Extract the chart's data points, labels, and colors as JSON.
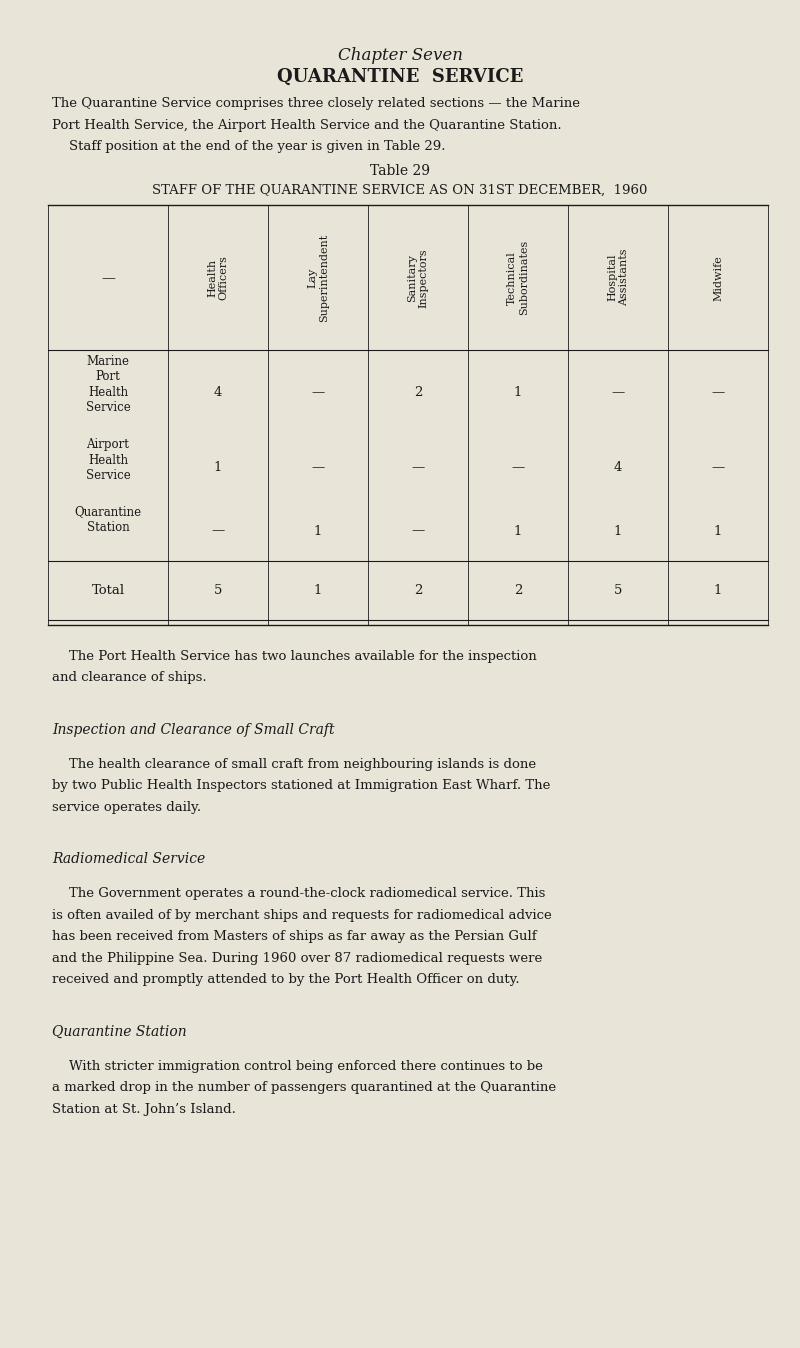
{
  "bg_color": "#e8e4d8",
  "text_color": "#1a1a1a",
  "page_width": 8.0,
  "page_height": 13.48,
  "chapter_title": "Chapter Seven",
  "main_title": "QUARANTINE  SERVICE",
  "intro_text_1": "The Quarantine Service comprises three closely related sections — the Marine",
  "intro_text_2": "Port Health Service, the Airport Health Service and the Quarantine Station.",
  "intro_text_3": "    Staff position at the end of the year is given in Table 29.",
  "table_caption": "Table 29",
  "table_title": "STAFF OF THE QUARANTINE SERVICE AS ON 31ST DECEMBER,  1960",
  "col_headers": [
    "Health\nOfficers",
    "Lay\nSuperintendent",
    "Sanitary\nInspectors",
    "Technical\nSubordinates",
    "Hospital\nAssistants",
    "Midwife"
  ],
  "row_labels": [
    "Marine\nPort\nHealth\nService",
    "Airport\nHealth\nService",
    "Quarantine\nStation"
  ],
  "table_data": [
    [
      "4",
      "—",
      "2",
      "1",
      "—",
      "—"
    ],
    [
      "1",
      "—",
      "—",
      "—",
      "4",
      "—"
    ],
    [
      "—",
      "1",
      "—",
      "1",
      "1",
      "1"
    ]
  ],
  "total_row_label": "Total",
  "total_row": [
    "5",
    "1",
    "2",
    "2",
    "5",
    "1"
  ],
  "body_text_1": "    The Port Health Service has two launches available for the inspection",
  "body_text_2": "and clearance of ships.",
  "section1_title": "Inspection and Clearance of Small Craft",
  "section1_text_1": "    The health clearance of small craft from neighbouring islands is done",
  "section1_text_2": "by two Public Health Inspectors stationed at Immigration East Wharf. The",
  "section1_text_3": "service operates daily.",
  "section2_title": "Radiomedical Service",
  "section2_text_1": "    The Government operates a round-the-clock radiomedical service. This",
  "section2_text_2": "is often availed of by merchant ships and requests for radiomedical advice",
  "section2_text_3": "has been received from Masters of ships as far away as the Persian Gulf",
  "section2_text_4": "and the Philippine Sea. During 1960 over 87 radiomedical requests were",
  "section2_text_5": "received and promptly attended to by the Port Health Officer on duty.",
  "section3_title": "Quarantine Station",
  "section3_text_1": "    With stricter immigration control being enforced there continues to be",
  "section3_text_2": "a marked drop in the number of passengers quarantined at the Quarantine",
  "section3_text_3": "Station at St. John’s Island."
}
